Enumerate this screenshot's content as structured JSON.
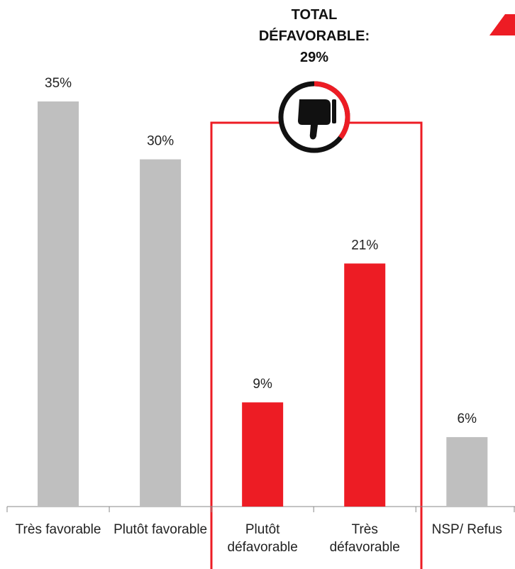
{
  "chart_data": {
    "type": "bar",
    "annotation": "TOTAL DÉFAVORABLE: 29%",
    "categories": [
      "Très favorable",
      "Plutôt favorable",
      "Plutôt défavorable",
      "Très défavorable",
      "NSP/ Refus"
    ],
    "values": [
      35,
      30,
      9,
      21,
      6
    ],
    "value_labels": [
      "35%",
      "30%",
      "9%",
      "21%",
      "6%"
    ],
    "colors": [
      "#bfbfbf",
      "#bfbfbf",
      "#ed1c24",
      "#ed1c24",
      "#bfbfbf"
    ],
    "ylim": [
      0,
      35
    ]
  }
}
